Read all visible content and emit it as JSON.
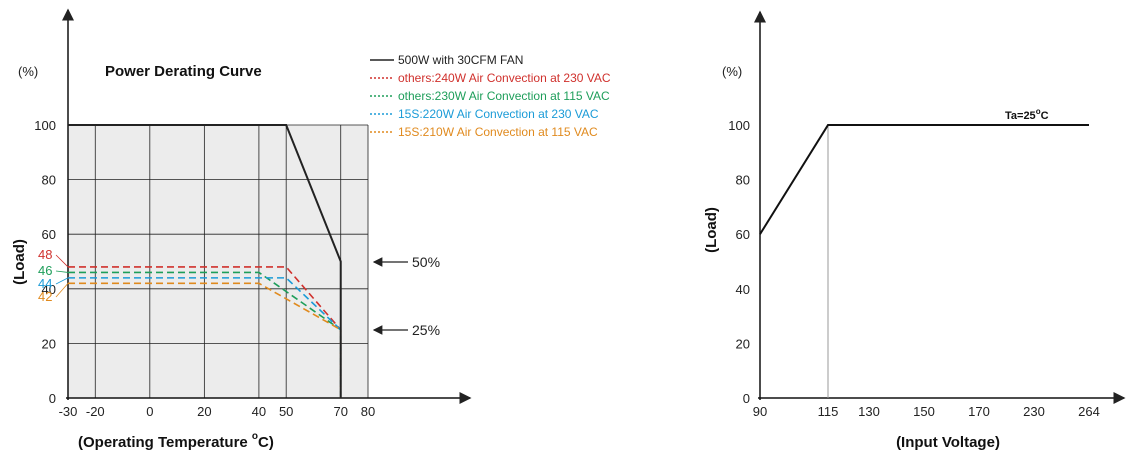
{
  "chart_data": [
    {
      "type": "line",
      "title": "Power Derating Curve",
      "unit_label": "(%)",
      "ylabel": "(Load)",
      "xlabel_main": "(Operating Temperature ",
      "xlabel_deg": "o",
      "xlabel_end": "C)",
      "x_ticks": [
        "-30",
        "-20",
        "0",
        "20",
        "40",
        "50",
        "70",
        "80"
      ],
      "y_ticks": [
        "0",
        "20",
        "40",
        "60",
        "80",
        "100"
      ],
      "ylim": [
        0,
        100
      ],
      "legend_placement": "top-right",
      "series": [
        {
          "name": "500W with 30CFM FAN",
          "color": "#222222",
          "style": "solid",
          "x": [
            -30,
            50,
            70,
            70
          ],
          "y": [
            100,
            100,
            50,
            0
          ]
        },
        {
          "name": "others:240W Air Convection at 230 VAC",
          "color": "#d0312d",
          "style": "dashed",
          "x": [
            -30,
            50,
            70,
            70
          ],
          "y": [
            48,
            48,
            25,
            0
          ]
        },
        {
          "name": "others:230W Air Convection at 115 VAC",
          "color": "#1e9e5a",
          "style": "dashed",
          "x": [
            -30,
            40,
            70,
            70
          ],
          "y": [
            46,
            46,
            25,
            0
          ]
        },
        {
          "name": "15S:220W Air Convection at 230 VAC",
          "color": "#1b9bd7",
          "style": "dashed",
          "x": [
            -30,
            50,
            70,
            70
          ],
          "y": [
            44,
            44,
            25,
            0
          ]
        },
        {
          "name": "15S:210W Air Convection at 115 VAC",
          "color": "#e08a1e",
          "style": "dashed",
          "x": [
            -30,
            40,
            70,
            70
          ],
          "y": [
            42,
            42,
            25,
            0
          ]
        }
      ],
      "side_labels": [
        {
          "text": "48",
          "color": "#d0312d"
        },
        {
          "text": "46",
          "color": "#1e9e5a"
        },
        {
          "text": "44",
          "color": "#1b9bd7"
        },
        {
          "text": "42",
          "color": "#e08a1e"
        }
      ],
      "annotations": [
        {
          "text": "50%",
          "y": 50
        },
        {
          "text": "25%",
          "y": 25
        }
      ],
      "grid": true
    },
    {
      "type": "line",
      "unit_label": "(%)",
      "ylabel": "(Load)",
      "xlabel": "(Input Voltage)",
      "x_ticks": [
        "90",
        "115",
        "130",
        "150",
        "170",
        "230",
        "264"
      ],
      "y_ticks": [
        "0",
        "20",
        "40",
        "60",
        "80",
        "100"
      ],
      "ylim": [
        0,
        100
      ],
      "annotation": "Ta=25",
      "annotation_deg": "o",
      "annotation_end": "C",
      "series": [
        {
          "color": "#111111",
          "x": [
            90,
            115,
            264
          ],
          "y": [
            60,
            100,
            100
          ]
        }
      ],
      "grid": false
    }
  ]
}
